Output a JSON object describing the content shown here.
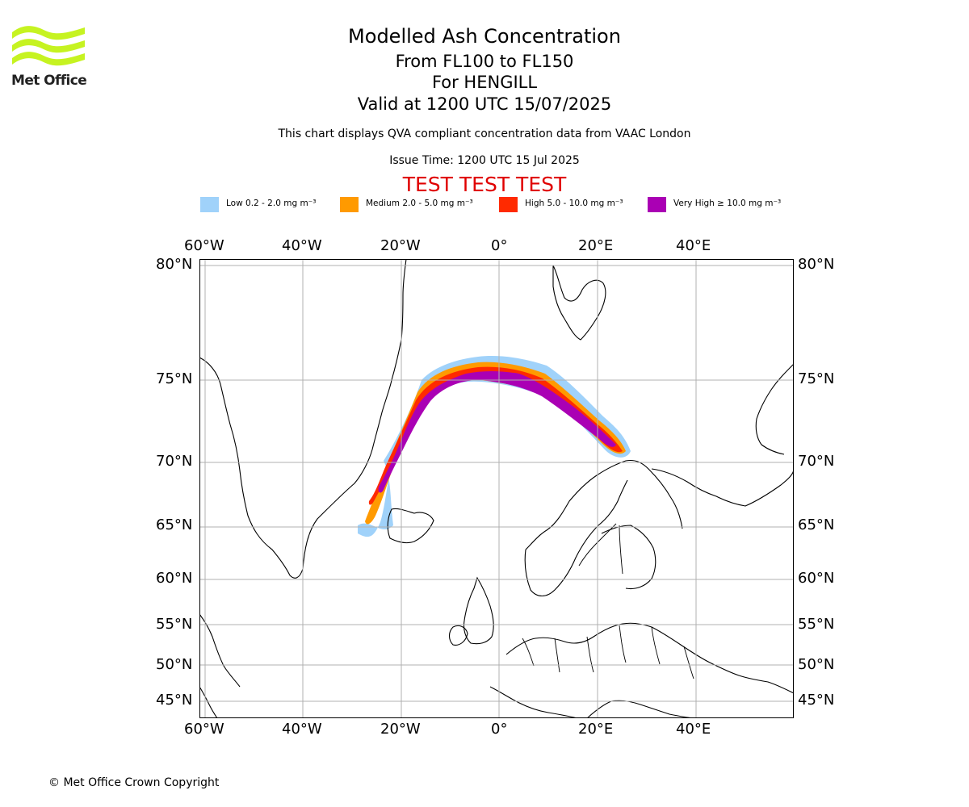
{
  "logo": {
    "text": "Met Office",
    "color": "#c6f321"
  },
  "title": {
    "line1": "Modelled Ash Concentration",
    "line2": "From FL100 to FL150",
    "line3": "For HENGILL",
    "line4": "Valid at 1200 UTC 15/07/2025"
  },
  "subtitle": "This chart displays QVA compliant concentration data from VAAC London",
  "issue_time": "Issue Time: 1200 UTC 15 Jul 2025",
  "test_banner": "TEST TEST TEST",
  "legend": [
    {
      "label": "Low 0.2 - 2.0 mg m⁻³",
      "color": "#a0d2fa"
    },
    {
      "label": "Medium 2.0 - 5.0 mg m⁻³",
      "color": "#ff9a00"
    },
    {
      "label": "High 5.0 - 10.0 mg m⁻³",
      "color": "#ff2a00"
    },
    {
      "label": "Very High ≥ 10.0 mg m⁻³",
      "color": "#aa00b4"
    }
  ],
  "map": {
    "lon_labels": [
      "60°W",
      "40°W",
      "20°W",
      "0°",
      "20°E",
      "40°E"
    ],
    "lat_labels": [
      "80°N",
      "75°N",
      "70°N",
      "65°N",
      "60°N",
      "55°N",
      "50°N",
      "45°N"
    ],
    "grid": true
  },
  "copyright": "© Met Office Crown Copyright"
}
